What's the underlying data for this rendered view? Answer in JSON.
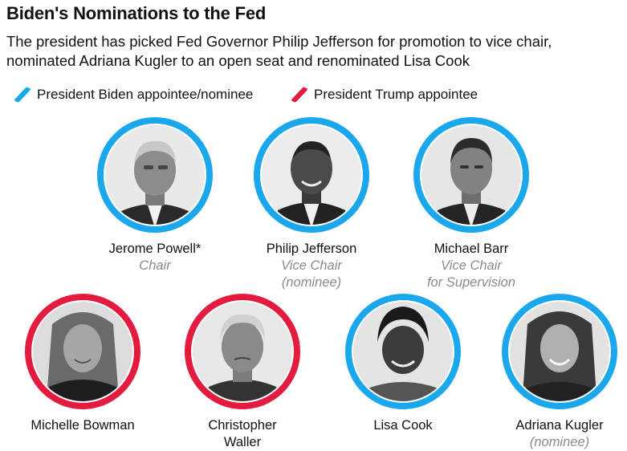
{
  "title": "Biden's Nominations to the Fed",
  "subtitle": "The president has picked Fed Governor Philip Jefferson for promotion to vice chair, nominated Adriana Kugler to an open seat and renominated Lisa Cook",
  "colors": {
    "biden": "#1aa7ec",
    "trump": "#e31b3f"
  },
  "legend": {
    "biden": "President Biden appointee/nominee",
    "trump": "President Trump appointee"
  },
  "people": [
    {
      "name": "Jerome Powell*",
      "role": [
        "Chair"
      ],
      "appointer": "biden"
    },
    {
      "name": "Philip Jefferson",
      "role": [
        "Vice Chair",
        "(nominee)"
      ],
      "appointer": "biden"
    },
    {
      "name": "Michael Barr",
      "role": [
        "Vice Chair",
        "for Supervision"
      ],
      "appointer": "biden"
    },
    {
      "name": "Michelle Bowman",
      "role": [],
      "appointer": "trump"
    },
    {
      "name": "Christopher Waller",
      "nameLines": [
        "Christopher",
        "Waller"
      ],
      "role": [],
      "appointer": "trump"
    },
    {
      "name": "Lisa Cook",
      "role": [],
      "appointer": "biden"
    },
    {
      "name": "Adriana Kugler",
      "role": [
        "(nominee)"
      ],
      "appointer": "biden"
    }
  ]
}
